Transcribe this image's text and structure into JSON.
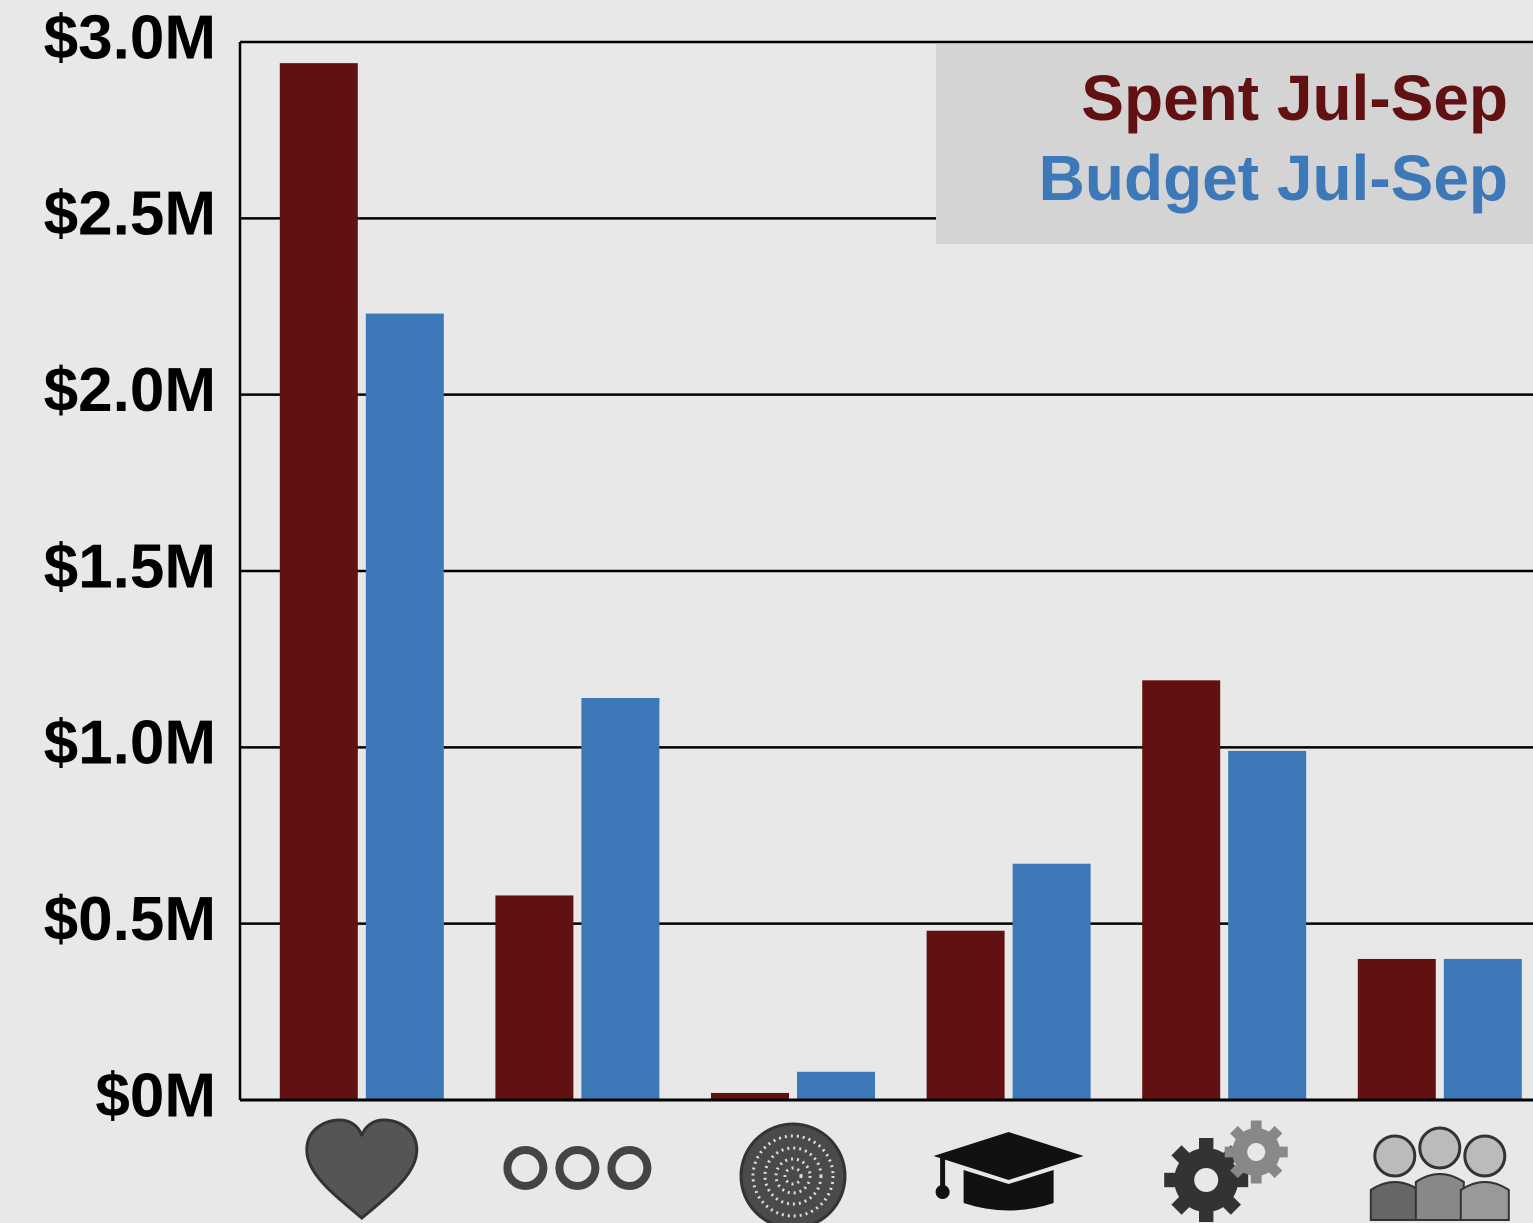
{
  "chart_data": {
    "type": "bar",
    "categories": [
      null,
      null,
      null,
      null,
      null,
      null
    ],
    "series": [
      {
        "name": "Spent Jul-Sep",
        "color": "#621112",
        "values": [
          2.94,
          0.58,
          0.02,
          0.48,
          1.19,
          0.4
        ]
      },
      {
        "name": "Budget Jul-Sep",
        "color": "#3d78b9",
        "values": [
          2.23,
          1.14,
          0.08,
          0.67,
          0.99,
          0.4
        ]
      }
    ],
    "ylim": [
      0,
      3
    ],
    "yticks": [
      {
        "value": 0,
        "label": "$0M"
      },
      {
        "value": 0.5,
        "label": "$0.5M"
      },
      {
        "value": 1,
        "label": "$1.0M"
      },
      {
        "value": 1.5,
        "label": "$1.5M"
      },
      {
        "value": 2,
        "label": "$2.0M"
      },
      {
        "value": 2.5,
        "label": "$2.5M"
      },
      {
        "value": 3,
        "label": "$3.0M"
      }
    ],
    "grid": true,
    "legend": "upper right"
  }
}
